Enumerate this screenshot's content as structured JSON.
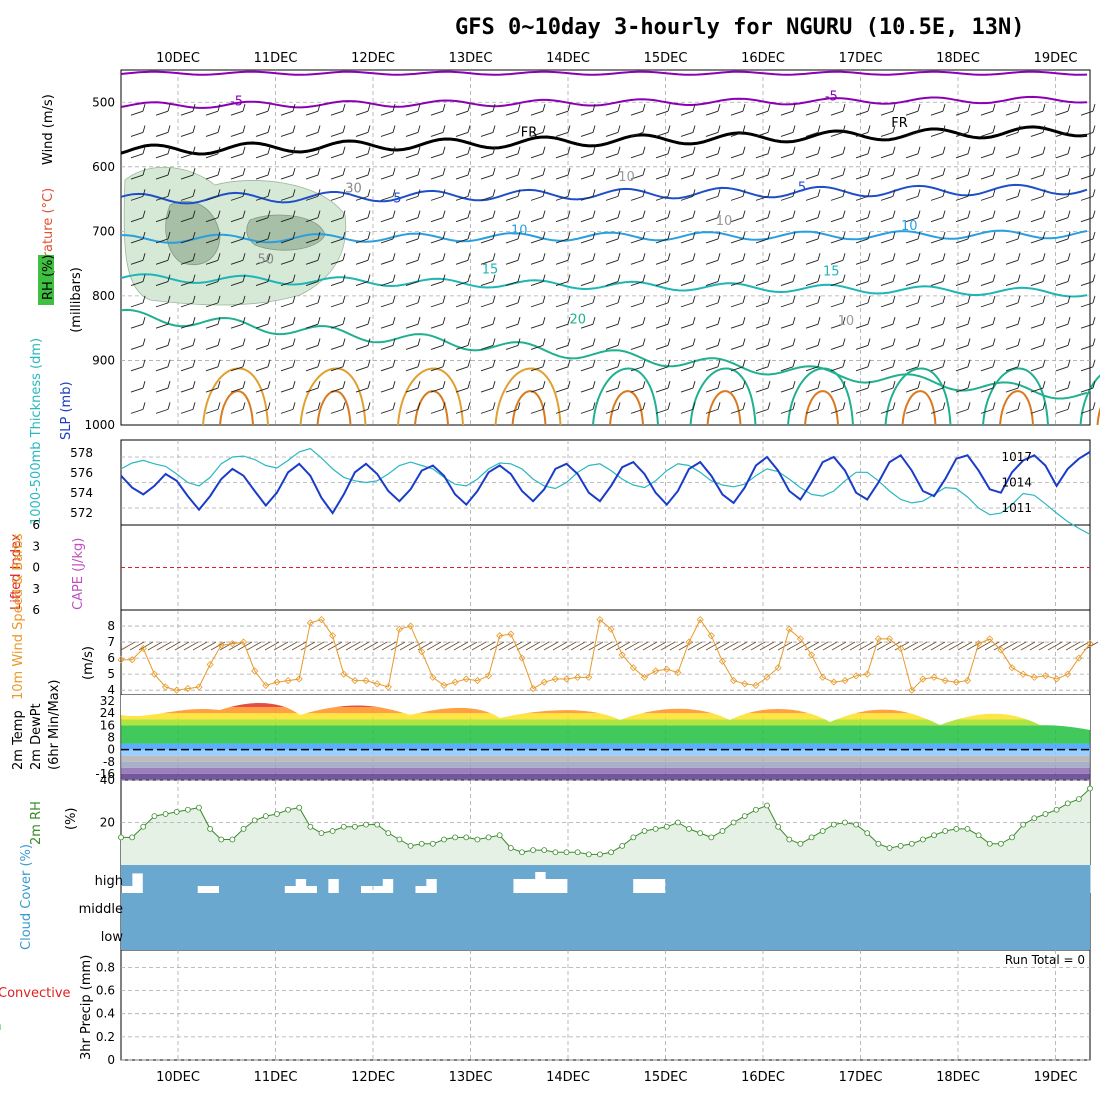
{
  "title": "GFS 0~10day 3-hourly for NGURU (10.5E, 13N)",
  "dates": [
    "10DEC",
    "11DEC",
    "12DEC",
    "13DEC",
    "14DEC",
    "15DEC",
    "16DEC",
    "17DEC",
    "18DEC",
    "19DEC"
  ],
  "colors": {
    "temp_neg": "#8b00b3",
    "freezing": "#000000",
    "t5": "#1f4fc8",
    "t10": "#2a9fe0",
    "t15": "#1fb5b5",
    "t20": "#20b090",
    "rh_fill": "#d6e9d6",
    "grid": "#aaaaaa",
    "slp": "#1a3cc8",
    "thickness": "#2ab8c0",
    "wind10": "#e89a2a",
    "rh2m": "#3a8a2a",
    "cloud": "#6aa8d0"
  },
  "chart_data": [
    {
      "type": "line",
      "panel": "upper-air",
      "ylabel": "(millibars)",
      "y_axis_title_parts": [
        "RH (%)",
        "Temperature (°C)",
        "Wind (m/s)"
      ],
      "y_ticks": [
        500,
        600,
        700,
        800,
        900,
        1000
      ],
      "ylim": [
        1000,
        450
      ],
      "isotherm_labels": [
        {
          "label": "-5",
          "level": 505,
          "day": 0.6
        },
        {
          "label": "-5",
          "level": 497,
          "day": 6.7
        },
        {
          "label": "FR",
          "level": 553,
          "day": 3.6
        },
        {
          "label": "FR",
          "level": 538,
          "day": 7.4
        },
        {
          "label": "5",
          "level": 655,
          "day": 2.25
        },
        {
          "label": "5",
          "level": 638,
          "day": 6.4
        },
        {
          "label": "10",
          "level": 705,
          "day": 3.5
        },
        {
          "label": "10",
          "level": 698,
          "day": 7.5
        },
        {
          "label": "15",
          "level": 765,
          "day": 3.2
        },
        {
          "label": "15",
          "level": 768,
          "day": 6.7
        },
        {
          "label": "20",
          "level": 843,
          "day": 4.1
        },
        {
          "label": "30",
          "level": 640,
          "day": 1.8
        },
        {
          "label": "50",
          "level": 750,
          "day": 0.9
        },
        {
          "label": "10",
          "level": 622,
          "day": 4.6
        },
        {
          "label": "10",
          "level": 690,
          "day": 5.6
        },
        {
          "label": "10",
          "level": 845,
          "day": 6.85
        }
      ]
    },
    {
      "type": "line",
      "panel": "slp-thickness",
      "series": [
        {
          "name": "1000-500mb Thickness (dm)",
          "color": "#2ab8c0",
          "y_ticks": [
            572,
            574,
            576,
            578
          ],
          "values": [
            1015.6,
            1016.3,
            1016.6,
            1016.2,
            1015.9,
            1015.0,
            1014.0,
            1013.6,
            1014.6,
            1016.2,
            1017.0,
            1017.1,
            1016.7,
            1016.0,
            1015.7,
            1016.6,
            1017.6,
            1018.0,
            1016.9,
            1015.6,
            1014.6,
            1014.2,
            1014.0,
            1014.2,
            1015.0,
            1016.0,
            1016.4,
            1016.0,
            1015.6,
            1014.6,
            1013.8,
            1013.6,
            1014.4,
            1015.6,
            1016.3,
            1016.2,
            1015.6,
            1014.4,
            1013.6,
            1013.3,
            1014.0,
            1015.2,
            1016.0,
            1016.2,
            1015.4,
            1014.4,
            1013.7,
            1013.4,
            1014.2,
            1015.4,
            1016.2,
            1016.0,
            1015.2,
            1014.2,
            1013.7,
            1013.5,
            1013.8,
            1014.8,
            1015.6,
            1015.3,
            1014.4,
            1013.4,
            1012.6,
            1012.4,
            1013.0,
            1014.2,
            1015.2,
            1015.2,
            1014.2,
            1013.0,
            1012.0,
            1011.6,
            1011.8,
            1012.6,
            1013.4,
            1013.3,
            1012.3,
            1011.0,
            1010.2,
            1010.4,
            1011.4,
            1012.7,
            1012.5,
            1011.5,
            1010.4,
            1009.4,
            1008.6,
            1007.9
          ],
          "line_ticks": [
            "572",
            "574",
            "576",
            "578"
          ]
        },
        {
          "name": "SLP (mb)",
          "color": "#1a3cc8",
          "y_ticks": [
            1011,
            1014,
            1017
          ],
          "values": [
            1014.8,
            1013.4,
            1012.6,
            1013.6,
            1015.0,
            1014.2,
            1012.4,
            1010.8,
            1012.4,
            1014.4,
            1015.6,
            1014.8,
            1013.0,
            1011.3,
            1012.8,
            1015.2,
            1016.2,
            1014.8,
            1012.2,
            1010.4,
            1012.6,
            1015.2,
            1016.2,
            1015.0,
            1013.0,
            1011.8,
            1013.2,
            1015.4,
            1016.0,
            1014.8,
            1012.6,
            1011.4,
            1013.0,
            1015.2,
            1016.0,
            1015.0,
            1013.0,
            1011.8,
            1013.2,
            1015.6,
            1016.2,
            1015.0,
            1012.8,
            1011.8,
            1013.6,
            1015.8,
            1016.4,
            1015.0,
            1012.8,
            1011.4,
            1013.0,
            1015.6,
            1016.4,
            1014.8,
            1012.6,
            1011.6,
            1013.4,
            1016.0,
            1017.0,
            1015.4,
            1013.0,
            1012.0,
            1014.0,
            1016.4,
            1017.0,
            1015.4,
            1012.8,
            1012.0,
            1014.0,
            1016.4,
            1017.2,
            1015.4,
            1013.0,
            1012.4,
            1014.4,
            1016.8,
            1017.2,
            1015.4,
            1013.2,
            1012.8,
            1015.2,
            1016.6,
            1017.2,
            1016.0,
            1013.6,
            1015.6,
            1016.8,
            1017.6
          ]
        }
      ]
    },
    {
      "type": "line",
      "panel": "stability",
      "series": [
        {
          "name": "Lifted Index",
          "color": "#e02020"
        },
        {
          "name": "CAPE (J/kg)",
          "color": "#c050c0"
        }
      ],
      "y_ticks": [
        -6,
        -3,
        0,
        3,
        6
      ],
      "ylim": [
        -6,
        6
      ]
    },
    {
      "type": "line",
      "panel": "wind10m",
      "series": [
        {
          "name": "10m Wind Speed & Barbs",
          "unit": "(m/s)",
          "color": "#e89a2a",
          "values": [
            5.9,
            5.9,
            6.6,
            5.0,
            4.2,
            4.0,
            4.1,
            4.2,
            5.6,
            6.8,
            6.9,
            7.0,
            5.2,
            4.3,
            4.5,
            4.6,
            4.7,
            8.2,
            8.4,
            7.4,
            5.0,
            4.6,
            4.6,
            4.4,
            4.2,
            7.8,
            8.0,
            6.4,
            4.8,
            4.3,
            4.5,
            4.7,
            4.6,
            4.9,
            7.4,
            7.5,
            6.0,
            4.1,
            4.5,
            4.7,
            4.7,
            4.8,
            4.8,
            8.4,
            7.8,
            6.2,
            5.4,
            4.8,
            5.2,
            5.3,
            5.1,
            7.0,
            8.4,
            7.4,
            5.8,
            4.6,
            4.4,
            4.3,
            4.8,
            5.4,
            7.8,
            7.2,
            6.2,
            4.8,
            4.5,
            4.6,
            4.9,
            5.0,
            7.2,
            7.2,
            6.6,
            4.0,
            4.7,
            4.8,
            4.6,
            4.5,
            4.6,
            6.9,
            7.2,
            6.5,
            5.4,
            5.0,
            4.8,
            4.9,
            4.7,
            5.0,
            6.0,
            6.9
          ]
        }
      ],
      "y_ticks": [
        4,
        5,
        6,
        7,
        8
      ],
      "ylim": [
        3.7,
        9
      ]
    },
    {
      "type": "area",
      "panel": "temp2m",
      "series": [
        {
          "name": "2m Temp"
        },
        {
          "name": "2m DewPt"
        },
        {
          "name": "(6hr Min/Max)"
        }
      ],
      "unit": "(°C)",
      "y_ticks": [
        -16,
        -8,
        0,
        8,
        16,
        24,
        32
      ],
      "ylim": [
        -20,
        36
      ]
    },
    {
      "type": "area",
      "panel": "rh2m",
      "series": [
        {
          "name": "2m RH",
          "unit": "(%)",
          "color": "#3a8a2a",
          "values": [
            13,
            13,
            18,
            23,
            24,
            25,
            26,
            27,
            17,
            12,
            12,
            17,
            21,
            23,
            24,
            26,
            27,
            18,
            15,
            16,
            18,
            18,
            19,
            19,
            15,
            12,
            9,
            10,
            10,
            12,
            13,
            13,
            12,
            13,
            14,
            8,
            6,
            7,
            7,
            6,
            6,
            6,
            5,
            5,
            6,
            9,
            13,
            16,
            17,
            18,
            20,
            17,
            15,
            13,
            16,
            20,
            23,
            26,
            28,
            18,
            12,
            10,
            13,
            16,
            19,
            20,
            19,
            15,
            10,
            8,
            9,
            10,
            12,
            14,
            16,
            17,
            17,
            14,
            10,
            10,
            13,
            19,
            22,
            24,
            26,
            29,
            31,
            36
          ]
        }
      ],
      "y_ticks": [
        20,
        40
      ],
      "ylim": [
        0,
        40
      ]
    },
    {
      "type": "bar",
      "panel": "cloud",
      "ylabel": "Cloud Cover (%)",
      "categories": [
        "high",
        "middle",
        "low"
      ],
      "high_values": [
        75,
        30,
        100,
        100,
        100,
        100,
        100,
        75,
        75,
        100,
        100,
        100,
        100,
        100,
        100,
        75,
        50,
        75,
        100,
        50,
        100,
        100,
        75,
        75,
        50,
        100,
        100,
        75,
        50,
        100,
        100,
        100,
        100,
        100,
        100,
        100,
        50,
        50,
        25,
        50,
        50,
        100,
        100,
        100,
        100,
        100,
        100,
        50,
        50,
        50,
        100,
        100,
        100,
        100,
        100,
        100,
        100,
        100,
        100,
        100,
        100,
        100,
        100,
        100,
        100,
        100,
        100,
        100,
        100,
        100,
        100,
        100,
        100,
        100,
        100,
        100,
        100,
        100,
        100,
        100,
        100,
        100,
        100,
        100,
        100,
        100,
        100,
        100,
        100
      ],
      "middle_values": [
        100,
        100,
        100,
        100,
        100,
        100,
        100,
        100,
        100,
        100,
        100,
        100,
        100,
        100,
        100,
        100,
        100,
        100,
        100,
        100,
        100,
        100,
        100,
        100,
        100,
        100,
        100,
        100,
        100,
        100,
        100,
        100,
        100,
        100,
        100,
        100,
        100,
        100,
        100,
        100,
        100,
        100,
        100,
        100,
        100,
        100,
        100,
        100,
        100,
        100,
        100,
        100,
        100,
        100,
        100,
        100,
        100,
        100,
        100,
        100,
        100,
        100,
        100,
        100,
        100,
        100,
        100,
        100,
        100,
        100,
        100,
        100,
        100,
        100,
        100,
        100,
        100,
        100,
        100,
        100,
        100,
        100,
        100,
        100,
        100,
        100,
        100,
        100,
        100
      ]
    },
    {
      "type": "bar",
      "panel": "precip",
      "ylabel": "3hr Precip (mm)",
      "legend": [
        "Total / Rain",
        "Convective"
      ],
      "annotation": "Run Total = 0",
      "y_ticks": [
        0,
        0.2,
        0.4,
        0.6,
        0.8
      ],
      "ylim": [
        0,
        0.95
      ],
      "values": []
    }
  ]
}
